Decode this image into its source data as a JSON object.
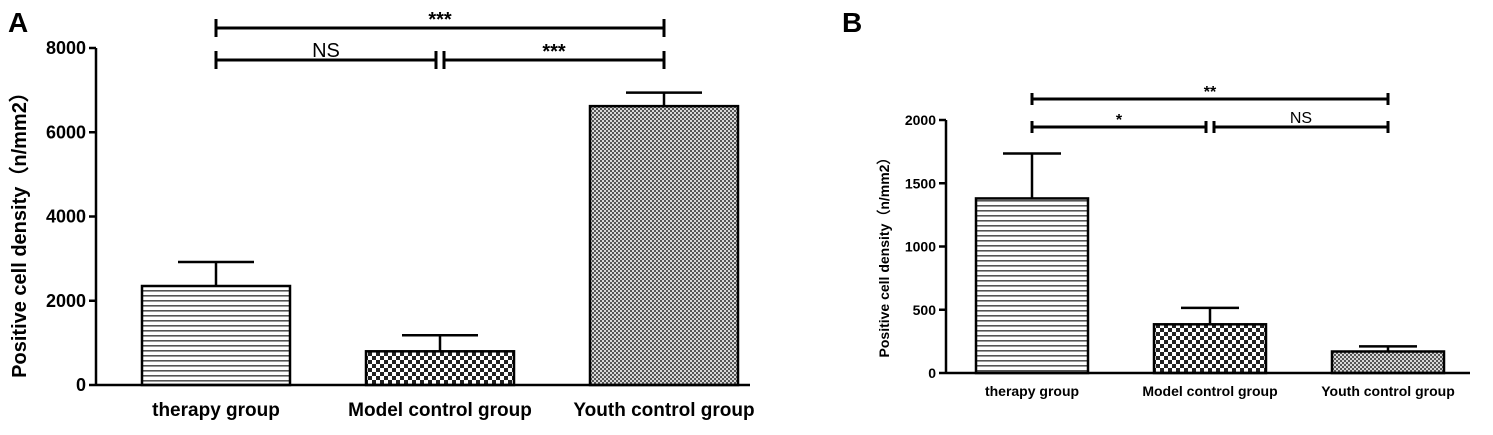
{
  "chart_data": [
    {
      "panel_label": "A",
      "type": "bar",
      "ylabel": "Positive cell density（n/mm2）",
      "xlabel": "",
      "categories": [
        "therapy group",
        "Model control group",
        "Youth control group"
      ],
      "values": [
        2350,
        800,
        6620
      ],
      "errors": [
        570,
        380,
        320
      ],
      "patterns": [
        "hstripe",
        "checker",
        "finecheck"
      ],
      "ylim": [
        0,
        8000
      ],
      "yticks": [
        "0",
        "2000",
        "4000",
        "6000",
        "8000"
      ],
      "significance": [
        {
          "from": 0,
          "to": 2,
          "label": "***"
        },
        {
          "from": 0,
          "to": 1,
          "label": "NS"
        },
        {
          "from": 1,
          "to": 2,
          "label": "***"
        }
      ]
    },
    {
      "panel_label": "B",
      "type": "bar",
      "ylabel": "Positive cell density（n/mm2）",
      "xlabel": "",
      "categories": [
        "therapy group",
        "Model control group",
        "Youth control group"
      ],
      "values": [
        1380,
        385,
        170
      ],
      "errors": [
        355,
        130,
        40
      ],
      "patterns": [
        "hstripe",
        "checker",
        "finecheck"
      ],
      "ylim": [
        0,
        2000
      ],
      "yticks": [
        "0",
        "500",
        "1000",
        "1500",
        "2000"
      ],
      "significance": [
        {
          "from": 0,
          "to": 2,
          "label": "**"
        },
        {
          "from": 0,
          "to": 1,
          "label": "*"
        },
        {
          "from": 1,
          "to": 2,
          "label": "NS"
        }
      ]
    }
  ]
}
